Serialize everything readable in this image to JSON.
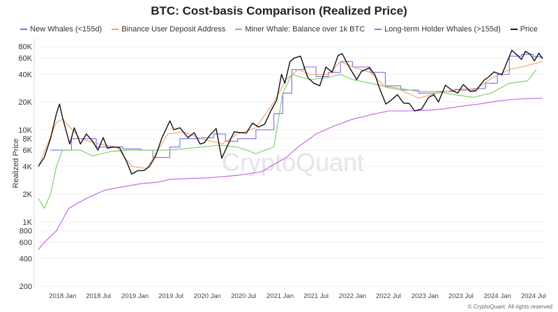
{
  "chart_data": {
    "type": "line",
    "title": "BTC: Cost-basis Comparison (Realized Price)",
    "ylabel": "Realized Price",
    "xlabel": "",
    "yscale": "log",
    "ylim": [
      200,
      90000
    ],
    "xlim": [
      "2017-09-01",
      "2024-08-23"
    ],
    "grid": true,
    "legend_position": "top",
    "watermark": "CryptoQuant",
    "copyright": "© CryptoQuant. All rights reserved",
    "y_ticks": [
      {
        "value": 80000,
        "label": "80K"
      },
      {
        "value": 60000,
        "label": "60K"
      },
      {
        "value": 40000,
        "label": "40K"
      },
      {
        "value": 20000,
        "label": "20K"
      },
      {
        "value": 10000,
        "label": "10K"
      },
      {
        "value": 8000,
        "label": "8K"
      },
      {
        "value": 6000,
        "label": "6K"
      },
      {
        "value": 4000,
        "label": "4K"
      },
      {
        "value": 2000,
        "label": "2K"
      },
      {
        "value": 1000,
        "label": "1K"
      },
      {
        "value": 800,
        "label": "800"
      },
      {
        "value": 600,
        "label": "600"
      },
      {
        "value": 400,
        "label": "400"
      },
      {
        "value": 200,
        "label": "200"
      }
    ],
    "x_ticks": [
      {
        "value": "2018-01-01",
        "label": "2018 Jan"
      },
      {
        "value": "2018-07-01",
        "label": "2018 Jul"
      },
      {
        "value": "2019-01-01",
        "label": "2019 Jan"
      },
      {
        "value": "2019-07-01",
        "label": "2019 Jul"
      },
      {
        "value": "2020-01-01",
        "label": "2020 Jan"
      },
      {
        "value": "2020-07-01",
        "label": "2020 Jul"
      },
      {
        "value": "2021-01-01",
        "label": "2021 Jan"
      },
      {
        "value": "2021-07-01",
        "label": "2021 Jul"
      },
      {
        "value": "2022-01-01",
        "label": "2022 Jan"
      },
      {
        "value": "2022-07-01",
        "label": "2022 Jul"
      },
      {
        "value": "2023-01-01",
        "label": "2023 Jan"
      },
      {
        "value": "2023-07-01",
        "label": "2023 Jul"
      },
      {
        "value": "2024-01-01",
        "label": "2024 Jan"
      },
      {
        "value": "2024-07-01",
        "label": "2024 Jul"
      }
    ],
    "series": [
      {
        "name": "New Whales (<155d)",
        "color": "#7b6cf0",
        "step": true,
        "points": [
          [
            "2017-11-01",
            6000
          ],
          [
            "2018-02-15",
            8000
          ],
          [
            "2018-06-20",
            6500
          ],
          [
            "2018-11-01",
            6200
          ],
          [
            "2019-02-01",
            6000
          ],
          [
            "2019-04-01",
            5000
          ],
          [
            "2019-06-25",
            6500
          ],
          [
            "2019-08-15",
            8000
          ],
          [
            "2019-12-01",
            8200
          ],
          [
            "2020-02-01",
            9000
          ],
          [
            "2020-04-01",
            7500
          ],
          [
            "2020-06-01",
            8000
          ],
          [
            "2020-09-01",
            10000
          ],
          [
            "2020-12-01",
            15000
          ],
          [
            "2021-01-15",
            25000
          ],
          [
            "2021-03-01",
            45000
          ],
          [
            "2021-05-01",
            48000
          ],
          [
            "2021-07-01",
            38000
          ],
          [
            "2021-09-01",
            42000
          ],
          [
            "2021-11-01",
            55000
          ],
          [
            "2022-01-01",
            48000
          ],
          [
            "2022-04-01",
            42000
          ],
          [
            "2022-06-15",
            30000
          ],
          [
            "2022-09-01",
            27000
          ],
          [
            "2022-12-01",
            25000
          ],
          [
            "2023-03-01",
            26000
          ],
          [
            "2023-06-01",
            27500
          ],
          [
            "2023-09-01",
            28000
          ],
          [
            "2023-11-01",
            32000
          ],
          [
            "2024-01-01",
            40000
          ],
          [
            "2024-03-01",
            63000
          ],
          [
            "2024-05-01",
            66000
          ],
          [
            "2024-07-01",
            62000
          ],
          [
            "2024-08-15",
            60000
          ]
        ]
      },
      {
        "name": "Binance User Deposit Address",
        "color": "#f5a161",
        "step": false,
        "points": [
          [
            "2017-09-01",
            4000
          ],
          [
            "2017-12-01",
            12000
          ],
          [
            "2018-01-01",
            13000
          ],
          [
            "2018-04-01",
            8000
          ],
          [
            "2018-07-01",
            7000
          ],
          [
            "2018-10-01",
            6500
          ],
          [
            "2018-12-15",
            4000
          ],
          [
            "2019-03-01",
            3800
          ],
          [
            "2019-06-15",
            9000
          ],
          [
            "2019-09-01",
            9500
          ],
          [
            "2019-12-01",
            8000
          ],
          [
            "2020-03-15",
            7000
          ],
          [
            "2020-06-01",
            9000
          ],
          [
            "2020-09-01",
            10500
          ],
          [
            "2020-12-01",
            20000
          ],
          [
            "2021-02-01",
            35000
          ],
          [
            "2021-04-01",
            45000
          ],
          [
            "2021-06-01",
            40000
          ],
          [
            "2021-09-01",
            40000
          ],
          [
            "2021-11-01",
            55000
          ],
          [
            "2022-01-01",
            48000
          ],
          [
            "2022-04-01",
            42000
          ],
          [
            "2022-06-15",
            29000
          ],
          [
            "2022-09-01",
            27000
          ],
          [
            "2022-12-01",
            22000
          ],
          [
            "2023-03-01",
            25000
          ],
          [
            "2023-06-01",
            27000
          ],
          [
            "2023-09-01",
            26500
          ],
          [
            "2023-12-01",
            36000
          ],
          [
            "2024-03-01",
            45000
          ],
          [
            "2024-05-01",
            48000
          ],
          [
            "2024-08-15",
            55000
          ]
        ]
      },
      {
        "name": "Miner Whale: Balance over 1k BTC",
        "color": "#7cc96b",
        "step": false,
        "points": [
          [
            "2017-09-01",
            1800
          ],
          [
            "2017-10-01",
            1400
          ],
          [
            "2017-11-01",
            2000
          ],
          [
            "2017-12-01",
            4000
          ],
          [
            "2018-01-01",
            6000
          ],
          [
            "2018-04-01",
            6000
          ],
          [
            "2018-06-01",
            5200
          ],
          [
            "2018-09-01",
            5800
          ],
          [
            "2018-12-01",
            6000
          ],
          [
            "2019-06-01",
            6000
          ],
          [
            "2019-09-01",
            6200
          ],
          [
            "2019-12-01",
            6500
          ],
          [
            "2020-03-01",
            6800
          ],
          [
            "2020-06-01",
            6500
          ],
          [
            "2020-09-01",
            5500
          ],
          [
            "2020-12-01",
            6500
          ],
          [
            "2021-01-15",
            25000
          ],
          [
            "2021-03-01",
            40000
          ],
          [
            "2021-06-01",
            35000
          ],
          [
            "2021-09-01",
            37000
          ],
          [
            "2021-11-01",
            40000
          ],
          [
            "2022-01-01",
            35000
          ],
          [
            "2022-04-01",
            32000
          ],
          [
            "2022-06-01",
            30000
          ],
          [
            "2022-09-01",
            28000
          ],
          [
            "2022-12-01",
            26000
          ],
          [
            "2023-03-01",
            26000
          ],
          [
            "2023-06-01",
            24000
          ],
          [
            "2023-09-01",
            22500
          ],
          [
            "2023-12-01",
            25000
          ],
          [
            "2024-03-01",
            32000
          ],
          [
            "2024-06-01",
            34000
          ],
          [
            "2024-07-15",
            45000
          ]
        ]
      },
      {
        "name": "Long-term Holder Whales (>155d)",
        "color": "#c25ce6",
        "step": false,
        "points": [
          [
            "2017-09-01",
            500
          ],
          [
            "2017-10-01",
            600
          ],
          [
            "2017-12-01",
            800
          ],
          [
            "2018-02-01",
            1400
          ],
          [
            "2018-05-01",
            1800
          ],
          [
            "2018-08-01",
            2200
          ],
          [
            "2018-11-01",
            2400
          ],
          [
            "2019-02-01",
            2600
          ],
          [
            "2019-05-01",
            2700
          ],
          [
            "2019-07-01",
            2900
          ],
          [
            "2019-10-01",
            2950
          ],
          [
            "2020-01-01",
            3000
          ],
          [
            "2020-06-01",
            3200
          ],
          [
            "2020-10-01",
            3500
          ],
          [
            "2020-12-01",
            4200
          ],
          [
            "2021-02-01",
            5000
          ],
          [
            "2021-04-01",
            6500
          ],
          [
            "2021-07-01",
            9000
          ],
          [
            "2021-10-01",
            11000
          ],
          [
            "2022-01-01",
            13000
          ],
          [
            "2022-04-01",
            14500
          ],
          [
            "2022-07-01",
            16000
          ],
          [
            "2022-10-01",
            16000
          ],
          [
            "2023-01-01",
            16200
          ],
          [
            "2023-04-01",
            16800
          ],
          [
            "2023-07-01",
            18000
          ],
          [
            "2023-10-01",
            19000
          ],
          [
            "2024-01-01",
            20500
          ],
          [
            "2024-04-01",
            21500
          ],
          [
            "2024-08-15",
            22000
          ]
        ]
      },
      {
        "name": "Price",
        "color": "#111111",
        "step": false,
        "points": [
          [
            "2017-09-01",
            4000
          ],
          [
            "2017-10-01",
            5000
          ],
          [
            "2017-11-01",
            8000
          ],
          [
            "2017-12-01",
            15000
          ],
          [
            "2017-12-17",
            19000
          ],
          [
            "2018-01-01",
            13500
          ],
          [
            "2018-02-06",
            7000
          ],
          [
            "2018-03-01",
            10500
          ],
          [
            "2018-04-01",
            7000
          ],
          [
            "2018-05-01",
            9000
          ],
          [
            "2018-06-01",
            7500
          ],
          [
            "2018-06-28",
            6000
          ],
          [
            "2018-07-25",
            8200
          ],
          [
            "2018-08-15",
            6300
          ],
          [
            "2018-09-15",
            6500
          ],
          [
            "2018-10-15",
            6400
          ],
          [
            "2018-11-20",
            4500
          ],
          [
            "2018-12-15",
            3300
          ],
          [
            "2019-01-15",
            3600
          ],
          [
            "2019-02-15",
            3600
          ],
          [
            "2019-03-15",
            4000
          ],
          [
            "2019-04-15",
            5200
          ],
          [
            "2019-05-15",
            8000
          ],
          [
            "2019-06-26",
            12500
          ],
          [
            "2019-07-15",
            10000
          ],
          [
            "2019-08-15",
            10500
          ],
          [
            "2019-09-25",
            8200
          ],
          [
            "2019-10-26",
            9300
          ],
          [
            "2019-11-25",
            7000
          ],
          [
            "2019-12-15",
            7200
          ],
          [
            "2020-01-15",
            8800
          ],
          [
            "2020-02-14",
            10300
          ],
          [
            "2020-03-13",
            4900
          ],
          [
            "2020-04-15",
            7000
          ],
          [
            "2020-05-15",
            9500
          ],
          [
            "2020-06-15",
            9300
          ],
          [
            "2020-07-15",
            9200
          ],
          [
            "2020-08-15",
            11800
          ],
          [
            "2020-09-15",
            10700
          ],
          [
            "2020-10-15",
            11500
          ],
          [
            "2020-11-15",
            16000
          ],
          [
            "2020-12-15",
            21000
          ],
          [
            "2021-01-08",
            40000
          ],
          [
            "2021-01-25",
            32000
          ],
          [
            "2021-02-20",
            55000
          ],
          [
            "2021-03-13",
            60000
          ],
          [
            "2021-04-14",
            63000
          ],
          [
            "2021-05-20",
            37000
          ],
          [
            "2021-06-20",
            32000
          ],
          [
            "2021-07-20",
            30000
          ],
          [
            "2021-08-20",
            48000
          ],
          [
            "2021-09-20",
            42000
          ],
          [
            "2021-10-20",
            64000
          ],
          [
            "2021-11-10",
            67000
          ],
          [
            "2021-12-15",
            48000
          ],
          [
            "2022-01-22",
            35000
          ],
          [
            "2022-02-15",
            43000
          ],
          [
            "2022-03-28",
            47000
          ],
          [
            "2022-04-25",
            39000
          ],
          [
            "2022-05-15",
            29000
          ],
          [
            "2022-06-18",
            19000
          ],
          [
            "2022-07-15",
            21000
          ],
          [
            "2022-08-15",
            24000
          ],
          [
            "2022-09-15",
            19500
          ],
          [
            "2022-10-15",
            19200
          ],
          [
            "2022-11-10",
            16000
          ],
          [
            "2022-12-15",
            16800
          ],
          [
            "2023-01-20",
            22500
          ],
          [
            "2023-02-15",
            24000
          ],
          [
            "2023-03-10",
            20000
          ],
          [
            "2023-04-14",
            30500
          ],
          [
            "2023-05-15",
            27000
          ],
          [
            "2023-06-15",
            25000
          ],
          [
            "2023-07-13",
            31000
          ],
          [
            "2023-08-18",
            26000
          ],
          [
            "2023-09-15",
            26500
          ],
          [
            "2023-10-25",
            34500
          ],
          [
            "2023-11-15",
            37000
          ],
          [
            "2023-12-15",
            42500
          ],
          [
            "2024-01-23",
            39500
          ],
          [
            "2024-02-15",
            52000
          ],
          [
            "2024-03-14",
            73000
          ],
          [
            "2024-04-15",
            63000
          ],
          [
            "2024-05-01",
            58000
          ],
          [
            "2024-05-21",
            71000
          ],
          [
            "2024-06-15",
            66000
          ],
          [
            "2024-07-05",
            56000
          ],
          [
            "2024-07-28",
            68000
          ],
          [
            "2024-08-15",
            59000
          ]
        ]
      }
    ]
  }
}
